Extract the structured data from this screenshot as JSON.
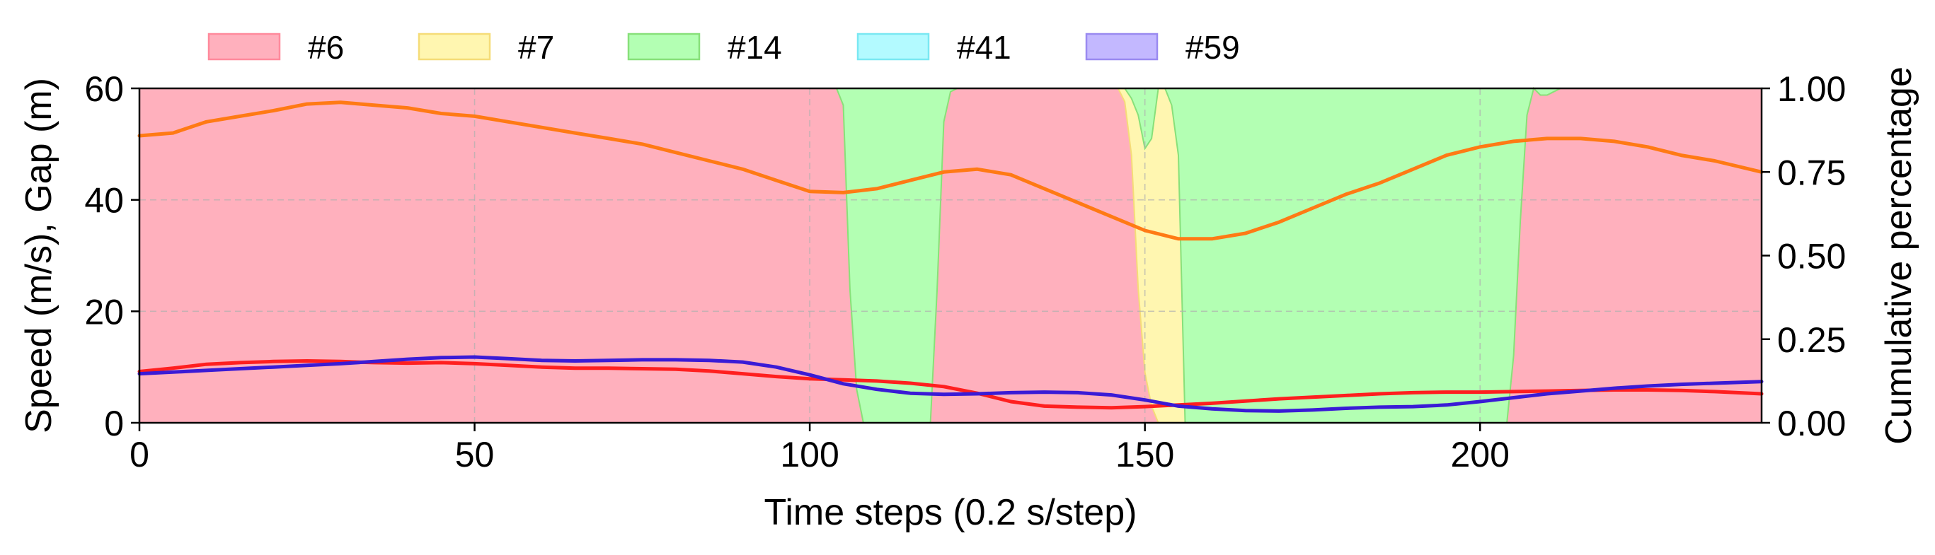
{
  "chart_data": {
    "type": "area",
    "xlabel": "Time steps (0.2 s/step)",
    "ylabel_left": "Speed (m/s), Gap (m)",
    "ylabel_right": "Cumulative percentage",
    "xlim": [
      0,
      242
    ],
    "ylim_left": [
      0,
      60
    ],
    "ylim_right": [
      0,
      1
    ],
    "x_ticks": [
      0,
      50,
      100,
      150,
      200
    ],
    "y_ticks_left": [
      0,
      20,
      40,
      60
    ],
    "y_ticks_right": [
      "0.00",
      "0.25",
      "0.50",
      "0.75",
      "1.00"
    ],
    "grid": true,
    "legend_position": "top",
    "legend": [
      {
        "label": "#6",
        "color": "#ffb0bd",
        "edge": "#ff8a9c"
      },
      {
        "label": "#7",
        "color": "#fff6b0",
        "edge": "#f5dc78"
      },
      {
        "label": "#14",
        "color": "#b3ffb3",
        "edge": "#88e07a"
      },
      {
        "label": "#41",
        "color": "#b3faff",
        "edge": "#7ae8f2"
      },
      {
        "label": "#59",
        "color": "#c3b8ff",
        "edge": "#9a8af0"
      }
    ],
    "bands": {
      "x": [
        0,
        104,
        105,
        106,
        107,
        108,
        109,
        116,
        117,
        118,
        119,
        120,
        121,
        122,
        146,
        147,
        148,
        149,
        150,
        151,
        152,
        153,
        154,
        155,
        156,
        203,
        204,
        205,
        206,
        207,
        208,
        209,
        210,
        211,
        212,
        213,
        242
      ],
      "p6": [
        1.0,
        1.0,
        0.95,
        0.4,
        0.1,
        0.0,
        0.0,
        0.0,
        0.0,
        0.0,
        0.4,
        0.9,
        0.99,
        1.0,
        1.0,
        0.96,
        0.8,
        0.4,
        0.15,
        0.05,
        0.0,
        0.0,
        0.0,
        0.0,
        0.0,
        0.0,
        0.0,
        0.2,
        0.6,
        0.92,
        1.0,
        0.98,
        0.98,
        0.99,
        1.0,
        1.0,
        1.0
      ],
      "p7": [
        0.0,
        0.0,
        0.0,
        0.0,
        0.0,
        0.0,
        0.0,
        0.0,
        0.0,
        0.0,
        0.0,
        0.0,
        0.0,
        0.0,
        0.0,
        0.04,
        0.17,
        0.52,
        0.67,
        0.8,
        1.0,
        1.0,
        0.95,
        0.8,
        0.0,
        0.0,
        0.0,
        0.0,
        0.0,
        0.0,
        0.0,
        0.0,
        0.0,
        0.0,
        0.0,
        0.0,
        0.0
      ],
      "p14": [
        0.0,
        0.0,
        0.05,
        0.6,
        0.9,
        1.0,
        1.0,
        1.0,
        1.0,
        1.0,
        0.6,
        0.1,
        0.01,
        0.0,
        0.0,
        0.0,
        0.03,
        0.08,
        0.18,
        0.15,
        0.0,
        0.0,
        0.05,
        0.2,
        1.0,
        1.0,
        1.0,
        0.8,
        0.4,
        0.08,
        0.0,
        0.02,
        0.02,
        0.01,
        0.0,
        0.0,
        0.0
      ]
    },
    "lines": [
      {
        "color": "#ff7a14",
        "x": [
          0,
          5,
          10,
          15,
          20,
          25,
          30,
          35,
          40,
          45,
          50,
          55,
          60,
          65,
          70,
          75,
          80,
          85,
          90,
          95,
          100,
          105,
          110,
          115,
          120,
          125,
          130,
          135,
          140,
          145,
          150,
          155,
          160,
          165,
          170,
          175,
          180,
          185,
          190,
          195,
          200,
          205,
          210,
          215,
          220,
          225,
          230,
          235,
          242
        ],
        "y": [
          51.5,
          52,
          54,
          55,
          56,
          57.2,
          57.5,
          57,
          56.5,
          55.5,
          55,
          54,
          53,
          52,
          51,
          50,
          48.5,
          47,
          45.5,
          43.5,
          41.5,
          41.3,
          42,
          43.5,
          45,
          45.5,
          44.5,
          42,
          39.5,
          37,
          34.5,
          33,
          33,
          34,
          36,
          38.5,
          41,
          43,
          45.5,
          48,
          49.5,
          50.5,
          51,
          51,
          50.5,
          49.5,
          48,
          47,
          45
        ]
      },
      {
        "color": "#ff1f1f",
        "x": [
          0,
          5,
          10,
          15,
          20,
          25,
          30,
          35,
          40,
          45,
          50,
          55,
          60,
          65,
          70,
          75,
          80,
          85,
          90,
          95,
          100,
          105,
          110,
          115,
          120,
          125,
          130,
          135,
          140,
          145,
          150,
          155,
          160,
          165,
          170,
          175,
          180,
          185,
          190,
          195,
          200,
          205,
          210,
          215,
          220,
          225,
          230,
          235,
          242
        ],
        "y": [
          9.2,
          9.8,
          10.5,
          10.8,
          11,
          11.1,
          11,
          10.8,
          10.7,
          10.8,
          10.6,
          10.3,
          10,
          9.8,
          9.8,
          9.7,
          9.6,
          9.3,
          8.8,
          8.3,
          7.9,
          7.7,
          7.5,
          7.1,
          6.5,
          5.3,
          3.8,
          3.0,
          2.8,
          2.7,
          2.9,
          3.2,
          3.5,
          3.9,
          4.3,
          4.6,
          4.9,
          5.2,
          5.4,
          5.5,
          5.5,
          5.6,
          5.7,
          5.8,
          5.9,
          5.9,
          5.8,
          5.6,
          5.2
        ]
      },
      {
        "color": "#3a1bd6",
        "x": [
          0,
          5,
          10,
          15,
          20,
          25,
          30,
          35,
          40,
          45,
          50,
          55,
          60,
          65,
          70,
          75,
          80,
          85,
          90,
          95,
          100,
          105,
          110,
          115,
          120,
          125,
          130,
          135,
          140,
          145,
          150,
          155,
          160,
          165,
          170,
          175,
          180,
          185,
          190,
          195,
          200,
          205,
          210,
          215,
          220,
          225,
          230,
          235,
          242
        ],
        "y": [
          8.8,
          9.1,
          9.4,
          9.7,
          10,
          10.3,
          10.6,
          11,
          11.4,
          11.7,
          11.8,
          11.5,
          11.2,
          11.1,
          11.2,
          11.3,
          11.3,
          11.2,
          10.9,
          10,
          8.6,
          7,
          6,
          5.3,
          5.1,
          5.2,
          5.4,
          5.5,
          5.4,
          5,
          4.1,
          3.0,
          2.5,
          2.2,
          2.1,
          2.3,
          2.6,
          2.8,
          2.9,
          3.2,
          3.8,
          4.5,
          5.2,
          5.7,
          6.2,
          6.6,
          6.9,
          7.1,
          7.4
        ]
      }
    ]
  }
}
